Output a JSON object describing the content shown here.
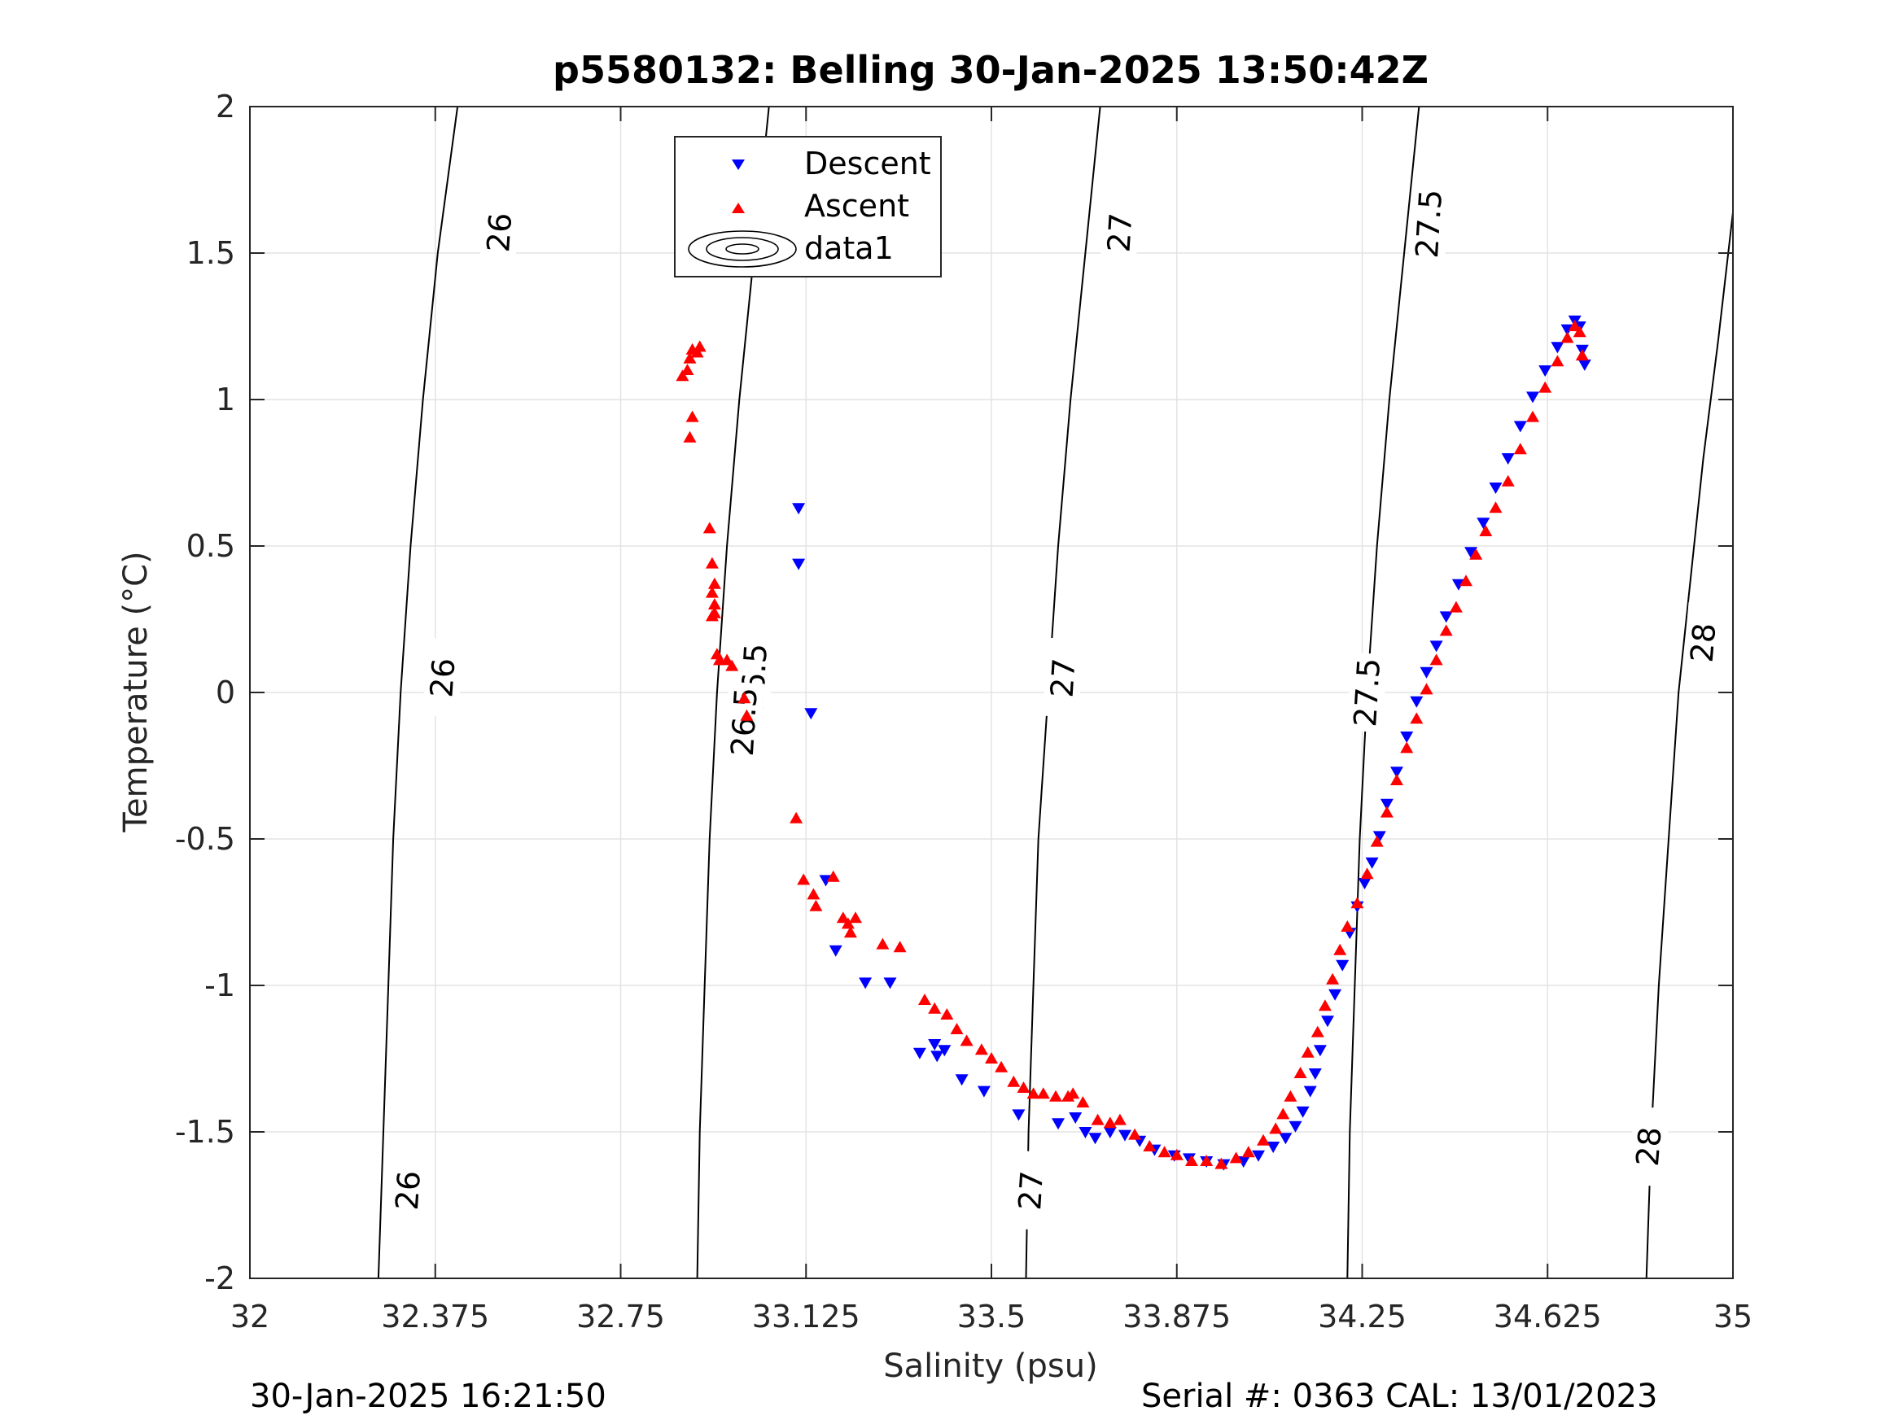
{
  "chart_data": {
    "type": "scatter",
    "title": "p5580132: Belling 30-Jan-2025 13:50:42Z",
    "xlabel": "Salinity (psu)",
    "ylabel": "Temperature (°C)",
    "xlim": [
      32,
      35
    ],
    "ylim": [
      -2,
      2
    ],
    "x_ticks": [
      "32",
      "32.375",
      "32.75",
      "33.125",
      "33.5",
      "33.875",
      "34.25",
      "34.625",
      "35"
    ],
    "x_tick_values": [
      32,
      32.375,
      32.75,
      33.125,
      33.5,
      33.875,
      34.25,
      34.625,
      35
    ],
    "y_ticks": [
      "-2",
      "-1.5",
      "-1",
      "-0.5",
      "0",
      "0.5",
      "1",
      "1.5",
      "2"
    ],
    "y_tick_values": [
      -2,
      -1.5,
      -1,
      -0.5,
      0,
      0.5,
      1,
      1.5,
      2
    ],
    "grid": true,
    "legend_position": "top-center",
    "legend": [
      "Descent",
      "Ascent",
      "data1"
    ],
    "series": [
      {
        "name": "Descent",
        "marker": "triangle-down",
        "color": "#0000ff",
        "points": [
          [
            33.11,
            0.63
          ],
          [
            33.11,
            0.44
          ],
          [
            33.135,
            -0.07
          ],
          [
            33.165,
            -0.64
          ],
          [
            33.185,
            -0.88
          ],
          [
            33.245,
            -0.99
          ],
          [
            33.295,
            -0.99
          ],
          [
            33.355,
            -1.23
          ],
          [
            33.385,
            -1.2
          ],
          [
            33.39,
            -1.24
          ],
          [
            33.405,
            -1.22
          ],
          [
            33.44,
            -1.32
          ],
          [
            33.485,
            -1.36
          ],
          [
            33.555,
            -1.44
          ],
          [
            33.635,
            -1.47
          ],
          [
            33.67,
            -1.45
          ],
          [
            33.69,
            -1.5
          ],
          [
            33.71,
            -1.52
          ],
          [
            33.74,
            -1.5
          ],
          [
            33.77,
            -1.51
          ],
          [
            33.8,
            -1.53
          ],
          [
            33.83,
            -1.56
          ],
          [
            33.87,
            -1.58
          ],
          [
            33.9,
            -1.59
          ],
          [
            33.935,
            -1.6
          ],
          [
            33.97,
            -1.61
          ],
          [
            34.01,
            -1.6
          ],
          [
            34.04,
            -1.58
          ],
          [
            34.07,
            -1.55
          ],
          [
            34.095,
            -1.52
          ],
          [
            34.115,
            -1.48
          ],
          [
            34.13,
            -1.43
          ],
          [
            34.145,
            -1.36
          ],
          [
            34.155,
            -1.3
          ],
          [
            34.165,
            -1.22
          ],
          [
            34.18,
            -1.12
          ],
          [
            34.195,
            -1.03
          ],
          [
            34.21,
            -0.93
          ],
          [
            34.225,
            -0.82
          ],
          [
            34.24,
            -0.73
          ],
          [
            34.255,
            -0.65
          ],
          [
            34.27,
            -0.58
          ],
          [
            34.285,
            -0.49
          ],
          [
            34.3,
            -0.38
          ],
          [
            34.32,
            -0.27
          ],
          [
            34.34,
            -0.15
          ],
          [
            34.36,
            -0.03
          ],
          [
            34.38,
            0.07
          ],
          [
            34.4,
            0.16
          ],
          [
            34.42,
            0.26
          ],
          [
            34.445,
            0.37
          ],
          [
            34.47,
            0.48
          ],
          [
            34.495,
            0.58
          ],
          [
            34.52,
            0.7
          ],
          [
            34.545,
            0.8
          ],
          [
            34.57,
            0.91
          ],
          [
            34.595,
            1.01
          ],
          [
            34.62,
            1.1
          ],
          [
            34.645,
            1.18
          ],
          [
            34.665,
            1.24
          ],
          [
            34.68,
            1.27
          ],
          [
            34.69,
            1.25
          ],
          [
            34.695,
            1.17
          ],
          [
            34.7,
            1.12
          ]
        ]
      },
      {
        "name": "Ascent",
        "marker": "triangle-up",
        "color": "#ff0000",
        "points": [
          [
            32.875,
            1.08
          ],
          [
            32.885,
            1.1
          ],
          [
            32.89,
            1.14
          ],
          [
            32.895,
            1.17
          ],
          [
            32.905,
            1.16
          ],
          [
            32.91,
            1.18
          ],
          [
            32.895,
            0.94
          ],
          [
            32.89,
            0.87
          ],
          [
            32.93,
            0.56
          ],
          [
            32.935,
            0.44
          ],
          [
            32.94,
            0.37
          ],
          [
            32.935,
            0.34
          ],
          [
            32.94,
            0.3
          ],
          [
            32.94,
            0.27
          ],
          [
            32.935,
            0.26
          ],
          [
            32.945,
            0.13
          ],
          [
            32.95,
            0.11
          ],
          [
            32.965,
            0.11
          ],
          [
            32.975,
            0.09
          ],
          [
            33.0,
            -0.02
          ],
          [
            33.005,
            -0.08
          ],
          [
            33.105,
            -0.43
          ],
          [
            33.12,
            -0.64
          ],
          [
            33.14,
            -0.69
          ],
          [
            33.145,
            -0.73
          ],
          [
            33.18,
            -0.63
          ],
          [
            33.2,
            -0.77
          ],
          [
            33.21,
            -0.79
          ],
          [
            33.225,
            -0.77
          ],
          [
            33.215,
            -0.82
          ],
          [
            33.28,
            -0.86
          ],
          [
            33.315,
            -0.87
          ],
          [
            33.365,
            -1.05
          ],
          [
            33.385,
            -1.08
          ],
          [
            33.41,
            -1.1
          ],
          [
            33.43,
            -1.15
          ],
          [
            33.45,
            -1.19
          ],
          [
            33.48,
            -1.22
          ],
          [
            33.5,
            -1.25
          ],
          [
            33.52,
            -1.28
          ],
          [
            33.545,
            -1.33
          ],
          [
            33.565,
            -1.35
          ],
          [
            33.585,
            -1.37
          ],
          [
            33.605,
            -1.37
          ],
          [
            33.63,
            -1.38
          ],
          [
            33.655,
            -1.38
          ],
          [
            33.665,
            -1.37
          ],
          [
            33.685,
            -1.4
          ],
          [
            33.715,
            -1.46
          ],
          [
            33.74,
            -1.47
          ],
          [
            33.76,
            -1.46
          ],
          [
            33.79,
            -1.51
          ],
          [
            33.82,
            -1.55
          ],
          [
            33.85,
            -1.57
          ],
          [
            33.875,
            -1.58
          ],
          [
            33.905,
            -1.6
          ],
          [
            33.935,
            -1.6
          ],
          [
            33.965,
            -1.61
          ],
          [
            33.995,
            -1.59
          ],
          [
            34.02,
            -1.57
          ],
          [
            34.05,
            -1.53
          ],
          [
            34.075,
            -1.49
          ],
          [
            34.09,
            -1.44
          ],
          [
            34.105,
            -1.38
          ],
          [
            34.125,
            -1.3
          ],
          [
            34.14,
            -1.23
          ],
          [
            34.16,
            -1.16
          ],
          [
            34.175,
            -1.07
          ],
          [
            34.19,
            -0.98
          ],
          [
            34.205,
            -0.88
          ],
          [
            34.22,
            -0.8
          ],
          [
            34.24,
            -0.72
          ],
          [
            34.26,
            -0.62
          ],
          [
            34.28,
            -0.51
          ],
          [
            34.3,
            -0.41
          ],
          [
            34.32,
            -0.3
          ],
          [
            34.34,
            -0.19
          ],
          [
            34.36,
            -0.09
          ],
          [
            34.38,
            0.01
          ],
          [
            34.4,
            0.11
          ],
          [
            34.42,
            0.21
          ],
          [
            34.44,
            0.29
          ],
          [
            34.46,
            0.38
          ],
          [
            34.48,
            0.47
          ],
          [
            34.5,
            0.55
          ],
          [
            34.52,
            0.63
          ],
          [
            34.545,
            0.72
          ],
          [
            34.57,
            0.83
          ],
          [
            34.595,
            0.94
          ],
          [
            34.62,
            1.04
          ],
          [
            34.645,
            1.13
          ],
          [
            34.665,
            1.21
          ],
          [
            34.68,
            1.25
          ],
          [
            34.69,
            1.23
          ],
          [
            34.695,
            1.15
          ]
        ]
      }
    ],
    "contours": {
      "name": "data1",
      "color": "#000000",
      "lines": [
        {
          "label": "26",
          "points": [
            [
              32.42,
              2.0
            ],
            [
              32.38,
              1.5
            ],
            [
              32.35,
              1.0
            ],
            [
              32.325,
              0.5
            ],
            [
              32.305,
              0.0
            ],
            [
              32.29,
              -0.5
            ],
            [
              32.28,
              -1.0
            ],
            [
              32.27,
              -1.5
            ],
            [
              32.26,
              -2.0
            ]
          ],
          "label_at": [
            [
              32.505,
              1.57
            ],
            [
              32.39,
              0.05
            ],
            [
              32.32,
              -1.7
            ]
          ]
        },
        {
          "label": "26.5",
          "points": [
            [
              33.05,
              2.0
            ],
            [
              33.02,
              1.5
            ],
            [
              32.99,
              1.0
            ],
            [
              32.965,
              0.5
            ],
            [
              32.945,
              0.0
            ],
            [
              32.93,
              -0.5
            ],
            [
              32.92,
              -1.0
            ],
            [
              32.91,
              -1.5
            ],
            [
              32.905,
              -2.0
            ]
          ],
          "label_at": [
            [
              33.125,
              1.57
            ],
            [
              33.02,
              0.05
            ],
            [
              33.0,
              -0.1
            ]
          ]
        },
        {
          "label": "27",
          "points": [
            [
              33.72,
              2.0
            ],
            [
              33.69,
              1.5
            ],
            [
              33.66,
              1.0
            ],
            [
              33.635,
              0.5
            ],
            [
              33.615,
              0.0
            ],
            [
              33.595,
              -0.5
            ],
            [
              33.585,
              -1.0
            ],
            [
              33.575,
              -1.5
            ],
            [
              33.57,
              -2.0
            ]
          ],
          "label_at": [
            [
              33.76,
              1.57
            ],
            [
              33.645,
              0.05
            ],
            [
              33.58,
              -1.7
            ]
          ]
        },
        {
          "label": "27.5",
          "points": [
            [
              34.365,
              2.0
            ],
            [
              34.335,
              1.5
            ],
            [
              34.305,
              1.0
            ],
            [
              34.28,
              0.5
            ],
            [
              34.26,
              0.0
            ],
            [
              34.245,
              -0.5
            ],
            [
              34.235,
              -1.0
            ],
            [
              34.225,
              -1.5
            ],
            [
              34.22,
              -2.0
            ]
          ],
          "label_at": [
            [
              34.385,
              1.6
            ],
            [
              34.26,
              0.0
            ]
          ]
        },
        {
          "label": "28",
          "points": [
            [
              35.0,
              1.64
            ],
            [
              34.97,
              1.2
            ],
            [
              34.94,
              0.8
            ],
            [
              34.915,
              0.4
            ],
            [
              34.89,
              0.0
            ],
            [
              34.87,
              -0.5
            ],
            [
              34.85,
              -1.0
            ],
            [
              34.835,
              -1.5
            ],
            [
              34.825,
              -2.0
            ]
          ],
          "label_at": [
            [
              34.94,
              0.17
            ],
            [
              34.83,
              -1.55
            ]
          ]
        }
      ]
    }
  },
  "footer": {
    "timestamp": "30-Jan-2025 16:21:50",
    "serial": "Serial #: 0363  CAL: 13/01/2023"
  }
}
